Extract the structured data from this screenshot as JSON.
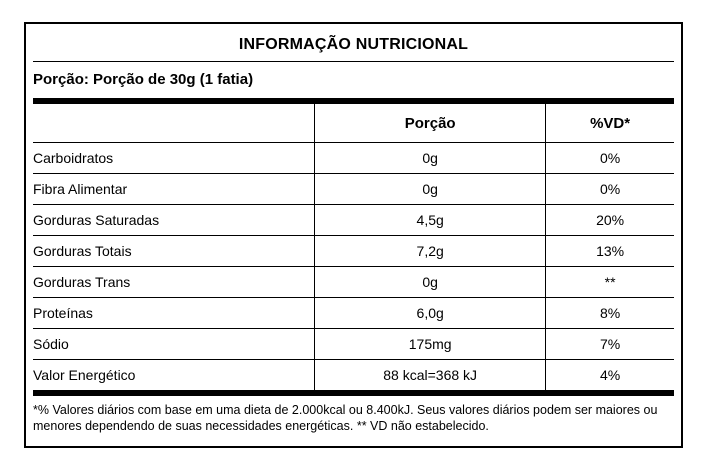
{
  "label": {
    "title": "INFORMAÇÃO NUTRICIONAL",
    "serving_line": "Porção: Porção de 30g (1 fatia)",
    "columns": {
      "nutrient": "",
      "portion": "Porção",
      "dv": "%VD*"
    },
    "rows": [
      {
        "nutrient": "Carboidratos",
        "portion": "0g",
        "dv": "0%"
      },
      {
        "nutrient": "Fibra Alimentar",
        "portion": "0g",
        "dv": "0%"
      },
      {
        "nutrient": "Gorduras Saturadas",
        "portion": "4,5g",
        "dv": "20%"
      },
      {
        "nutrient": "Gorduras Totais",
        "portion": "7,2g",
        "dv": "13%"
      },
      {
        "nutrient": "Gorduras Trans",
        "portion": "0g",
        "dv": "**"
      },
      {
        "nutrient": "Proteínas",
        "portion": "6,0g",
        "dv": "8%"
      },
      {
        "nutrient": "Sódio",
        "portion": "175mg",
        "dv": "7%"
      },
      {
        "nutrient": "Valor Energético",
        "portion": "88 kcal=368 kJ",
        "dv": "4%"
      }
    ],
    "footnote": "*% Valores diários com base em uma dieta de 2.000kcal ou 8.400kJ. Seus valores diários podem ser maiores ou menores dependendo de suas necessidades energéticas. ** VD não estabelecido.",
    "colors": {
      "text": "#000000",
      "background": "#ffffff",
      "border": "#000000"
    }
  }
}
